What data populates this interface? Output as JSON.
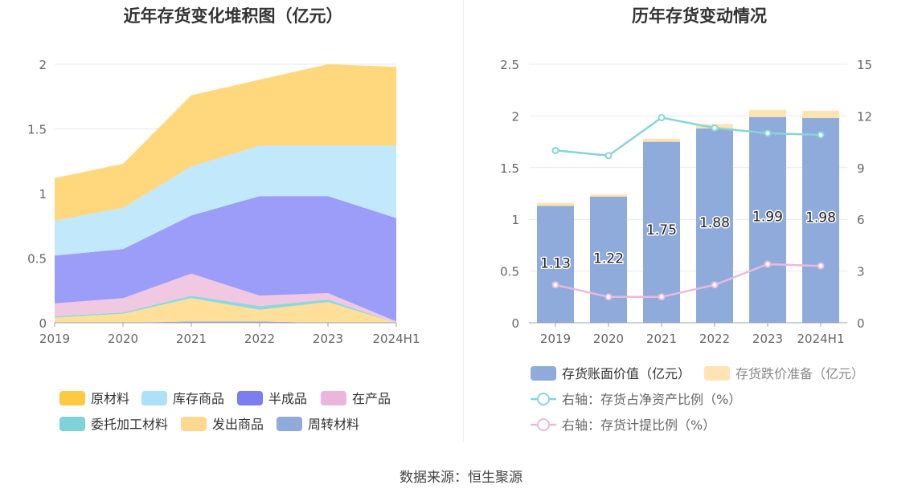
{
  "footer": {
    "source": "数据来源：恒生聚源"
  },
  "chart_data": [
    {
      "type": "area",
      "stacked": true,
      "title": "近年存货变化堆积图（亿元）",
      "categories": [
        "2019",
        "2020",
        "2021",
        "2022",
        "2023",
        "2024H1"
      ],
      "ylim": [
        0,
        2
      ],
      "yticks": [
        "0",
        "0.5",
        "1",
        "1.5",
        "2"
      ],
      "grid": true,
      "legend_position": "bottom",
      "series": [
        {
          "name": "周转材料",
          "color": "#8fabdc",
          "values": [
            0.0,
            0.0,
            0.01,
            0.01,
            0.0,
            0.0
          ]
        },
        {
          "name": "发出商品",
          "color": "#ffdf99",
          "values": [
            0.04,
            0.07,
            0.18,
            0.09,
            0.16,
            0.0
          ]
        },
        {
          "name": "委托加工材料",
          "color": "#8ed8dc",
          "values": [
            0.01,
            0.01,
            0.02,
            0.03,
            0.02,
            0.0
          ]
        },
        {
          "name": "在产品",
          "color": "#f1c8e2",
          "values": [
            0.1,
            0.11,
            0.17,
            0.08,
            0.05,
            0.01
          ]
        },
        {
          "name": "半成品",
          "color": "#9c9cf9",
          "values": [
            0.37,
            0.38,
            0.45,
            0.77,
            0.75,
            0.8
          ]
        },
        {
          "name": "库存商品",
          "color": "#c2e8fb",
          "values": [
            0.27,
            0.32,
            0.38,
            0.39,
            0.39,
            0.56
          ]
        },
        {
          "name": "原材料",
          "color": "#ffd77c",
          "values": [
            0.33,
            0.34,
            0.55,
            0.51,
            0.63,
            0.61
          ]
        }
      ],
      "legend": [
        {
          "name": "原材料",
          "color": "#ffc941"
        },
        {
          "name": "库存商品",
          "color": "#aee0f9"
        },
        {
          "name": "半成品",
          "color": "#7b7df2"
        },
        {
          "name": "在产品",
          "color": "#ecb5dc"
        },
        {
          "name": "委托加工材料",
          "color": "#7fd3d8"
        },
        {
          "name": "发出商品",
          "color": "#ffd88f"
        },
        {
          "name": "周转材料",
          "color": "#8fabdc"
        }
      ]
    },
    {
      "type": "bar",
      "stacked": true,
      "title": "历年存货变动情况",
      "categories": [
        "2019",
        "2020",
        "2021",
        "2022",
        "2023",
        "2024H1"
      ],
      "ylim": [
        0,
        2.5
      ],
      "yticks": [
        "0",
        "0.5",
        "1",
        "1.5",
        "2",
        "2.5"
      ],
      "y2lim": [
        0,
        15
      ],
      "y2ticks": [
        "0",
        "3",
        "6",
        "9",
        "12",
        "15"
      ],
      "grid": true,
      "legend_position": "bottom",
      "series": [
        {
          "name": "存货账面价值（亿元）",
          "kind": "bar",
          "color": "#8fabdc",
          "values": [
            1.13,
            1.22,
            1.75,
            1.88,
            1.99,
            1.98
          ],
          "labels": [
            "1.13",
            "1.22",
            "1.75",
            "1.88",
            "1.99",
            "1.98"
          ]
        },
        {
          "name": "存货跌价准备（亿元）",
          "kind": "bar",
          "color": "#ffe3b3",
          "values": [
            0.03,
            0.02,
            0.03,
            0.04,
            0.07,
            0.07
          ]
        },
        {
          "name": "右轴：存货占净资产比例（%）",
          "kind": "line",
          "axis": "right",
          "color": "#86d6d8",
          "values": [
            10.0,
            9.7,
            11.9,
            11.3,
            11.0,
            10.9
          ]
        },
        {
          "name": "右轴：存货计提比例（%）",
          "kind": "line",
          "axis": "right",
          "color": "#eab9dc",
          "values": [
            2.2,
            1.5,
            1.5,
            2.2,
            3.4,
            3.3
          ]
        }
      ]
    }
  ]
}
